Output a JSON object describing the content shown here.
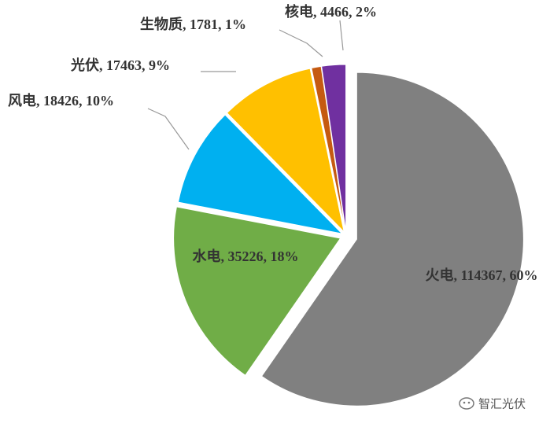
{
  "chart_data": {
    "type": "pie",
    "categories": [
      "火电",
      "水电",
      "风电",
      "光伏",
      "生物质",
      "核电"
    ],
    "values": [
      114367,
      35226,
      18426,
      17463,
      1781,
      4466
    ],
    "value_labels": [
      ", 114367, 60%",
      ", 35226, 18%",
      ", 18426, 10%",
      ", 17463, 9%",
      ", 1781, 1%",
      ", 4466, 2%"
    ],
    "colors": [
      "#808080",
      "#70ad47",
      "#00b0f0",
      "#ffc000",
      "#c55a11",
      "#7030a0"
    ],
    "watermark": "智汇光伏"
  }
}
